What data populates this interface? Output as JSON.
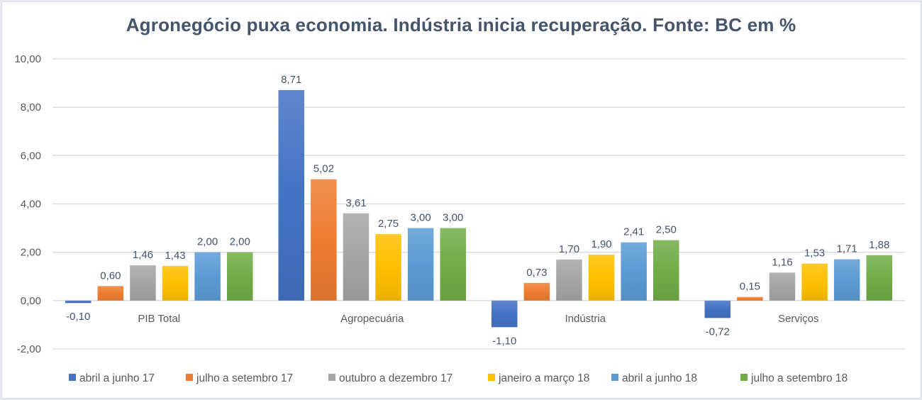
{
  "chart_data": {
    "type": "bar",
    "title": "Agronegócio puxa economia. Indústria inicia recuperação. Fonte: BC em %",
    "xlabel": "",
    "ylabel": "",
    "ylim": [
      -2,
      10
    ],
    "yticks": [
      10,
      8,
      6,
      4,
      2,
      0,
      -2
    ],
    "ytick_labels": [
      "10,00",
      "8,00",
      "6,00",
      "4,00",
      "2,00",
      "0,00",
      "-2,00"
    ],
    "grid": true,
    "legend_position": "bottom",
    "categories": [
      "PIB Total",
      "Agropecuária",
      "Indústria",
      "Serviços"
    ],
    "series": [
      {
        "name": "abril a junho 17",
        "color": "#4472c4",
        "values": [
          -0.1,
          8.71,
          -1.1,
          -0.72
        ],
        "labels": [
          "-0,10",
          "8,71",
          "-1,10",
          "-0,72"
        ]
      },
      {
        "name": "julho a setembro 17",
        "color": "#ed7d31",
        "values": [
          0.6,
          5.02,
          0.73,
          0.15
        ],
        "labels": [
          "0,60",
          "5,02",
          "0,73",
          "0,15"
        ]
      },
      {
        "name": "outubro a dezembro 17",
        "color": "#a5a5a5",
        "values": [
          1.46,
          3.61,
          1.7,
          1.16
        ],
        "labels": [
          "1,46",
          "3,61",
          "1,70",
          "1,16"
        ]
      },
      {
        "name": "janeiro a março 18",
        "color": "#ffc000",
        "values": [
          1.43,
          2.75,
          1.9,
          1.53
        ],
        "labels": [
          "1,43",
          "2,75",
          "1,90",
          "1,53"
        ]
      },
      {
        "name": "abril a junho 18",
        "color": "#5b9bd5",
        "values": [
          2.0,
          3.0,
          2.41,
          1.71
        ],
        "labels": [
          "2,00",
          "3,00",
          "2,41",
          "1,71"
        ]
      },
      {
        "name": "julho a setembro 18",
        "color": "#70ad47",
        "values": [
          2.0,
          3.0,
          2.5,
          1.88
        ],
        "labels": [
          "2,00",
          "3,00",
          "2,50",
          "1,88"
        ]
      }
    ]
  }
}
